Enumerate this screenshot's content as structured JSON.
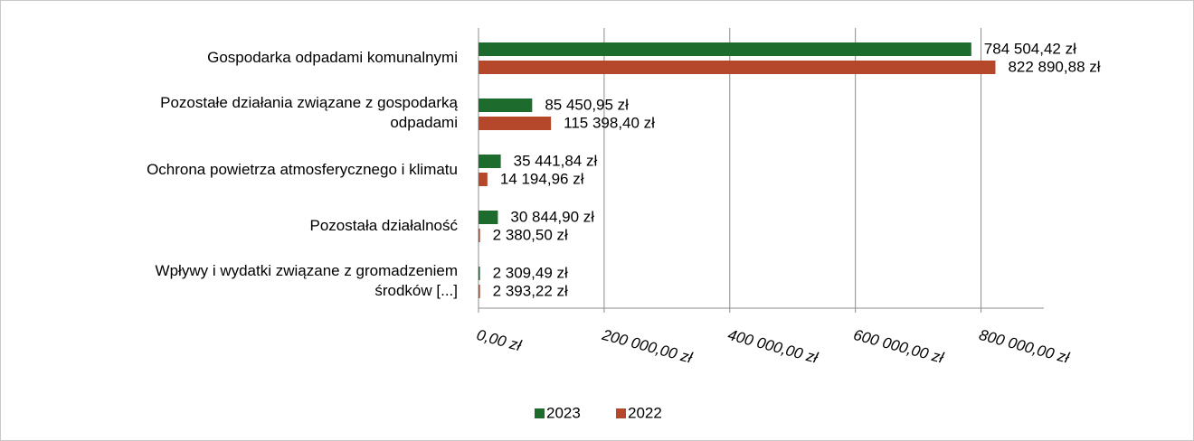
{
  "chart_data": {
    "type": "bar",
    "orientation": "horizontal",
    "categories": [
      "Gospodarka odpadami komunalnymi",
      "Pozostałe działania związane z gospodarką\nodpadami",
      "Ochrona powietrza atmosferycznego i klimatu",
      "Pozostała działalność",
      "Wpływy i wydatki związane z gromadzeniem\nśrodków [...]"
    ],
    "series": [
      {
        "name": "2023",
        "color": "#1e6b2e",
        "values": [
          784504.42,
          85450.95,
          35441.84,
          30844.9,
          2309.49
        ],
        "value_labels": [
          "784 504,42 zł",
          "85 450,95 zł",
          "35 441,84 zł",
          "30 844,90 zł",
          "2 309,49 zł"
        ]
      },
      {
        "name": "2022",
        "color": "#b5472a",
        "values": [
          822890.88,
          115398.4,
          14194.96,
          2380.5,
          2393.22
        ],
        "value_labels": [
          "822 890,88 zł",
          "115 398,40 zł",
          "14 194,96 zł",
          "2 380,50 zł",
          "2 393,22 zł"
        ]
      }
    ],
    "xlim": [
      0,
      900000
    ],
    "xticks": [
      {
        "value": 0,
        "label": "0,00 zł"
      },
      {
        "value": 200000,
        "label": "200 000,00 zł"
      },
      {
        "value": 400000,
        "label": "400 000,00 zł"
      },
      {
        "value": 600000,
        "label": "600 000,00 zł"
      },
      {
        "value": 800000,
        "label": "800 000,00 zł"
      }
    ],
    "grid": true,
    "legend": "bottom"
  }
}
